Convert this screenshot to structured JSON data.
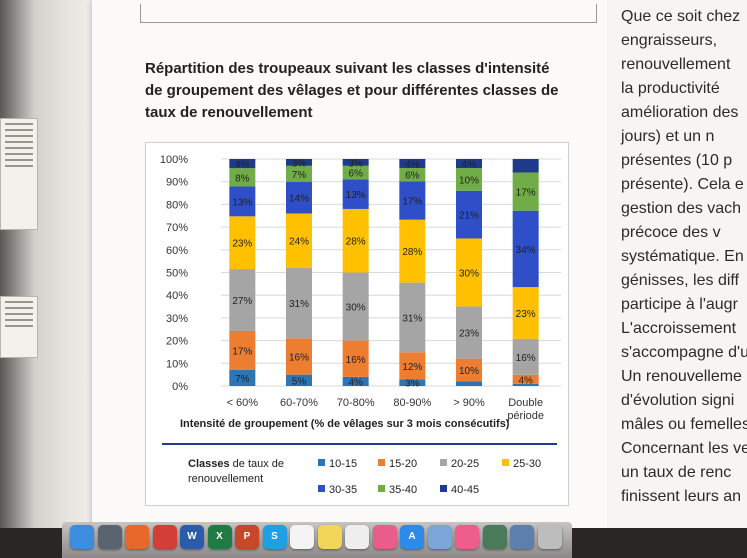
{
  "document": {
    "title_lines": [
      "Répartition des troupeaux suivant les classes d'intensité",
      "de groupement des vêlages et pour différentes classes de",
      "taux de renouvellement"
    ],
    "right_column_lines": [
      "Que ce soit chez",
      "engraisseurs,",
      "renouvellement",
      "la productivité",
      "amélioration des",
      "jours) et un n",
      "présentes (10 p",
      "présente). Cela e",
      "gestion des vach",
      "précoce des v",
      "systématique. En",
      "génisses, les diff",
      "participe à l'augr",
      "L'accroissement",
      "s'accompagne d'u",
      "Un renouvelleme",
      "d'évolution signi",
      "mâles ou femelles",
      "Concernant les ve",
      "un taux de renc",
      "finissent leurs an"
    ]
  },
  "chart_data": {
    "type": "bar",
    "stacked": true,
    "percent_scale": true,
    "categories": [
      "< 60%",
      "60-70%",
      "70-80%",
      "80-90%",
      "> 90%",
      "Double\npériode"
    ],
    "xlabel": "Intensité de groupement (% de vêlages sur 3 mois consécutifs)",
    "ylabel": "",
    "ylim": [
      0,
      100
    ],
    "yticks": [
      "0%",
      "10%",
      "20%",
      "30%",
      "40%",
      "50%",
      "60%",
      "70%",
      "80%",
      "90%",
      "100%"
    ],
    "grid": true,
    "legend_title_bold": "Classes",
    "legend_title_rest": "de taux de renouvellement",
    "legend_position": "bottom",
    "series": [
      {
        "name": "10-15",
        "color": "#2e75b6",
        "values": [
          7,
          5,
          4,
          3,
          2,
          1
        ],
        "labels": [
          "7%",
          "5%",
          "4%",
          "3%",
          "",
          ""
        ]
      },
      {
        "name": "15-20",
        "color": "#ed7d31",
        "values": [
          17,
          16,
          16,
          12,
          10,
          4
        ],
        "labels": [
          "17%",
          "16%",
          "16%",
          "12%",
          "10%",
          "4%"
        ]
      },
      {
        "name": "20-25",
        "color": "#a5a5a5",
        "values": [
          27,
          31,
          30,
          31,
          23,
          16
        ],
        "labels": [
          "27%",
          "31%",
          "30%",
          "31%",
          "23%",
          "16%"
        ]
      },
      {
        "name": "25-30",
        "color": "#ffc000",
        "values": [
          23,
          24,
          28,
          28,
          30,
          23
        ],
        "labels": [
          "23%",
          "24%",
          "28%",
          "28%",
          "30%",
          "23%"
        ]
      },
      {
        "name": "30-35",
        "color": "#2e4fc7",
        "values": [
          13,
          14,
          13,
          17,
          21,
          34
        ],
        "labels": [
          "13%",
          "14%",
          "13%",
          "17%",
          "21%",
          "34%"
        ]
      },
      {
        "name": "35-40",
        "color": "#70ad47",
        "values": [
          8,
          7,
          6,
          6,
          10,
          17
        ],
        "labels": [
          "8%",
          "7%",
          "6%",
          "6%",
          "10%",
          "17%"
        ]
      },
      {
        "name": "40-45",
        "color": "#1f3a8a",
        "values": [
          4,
          3,
          3,
          4,
          4,
          6
        ],
        "labels": [
          "4%",
          "3%",
          "3%",
          "4%",
          "4%",
          ""
        ]
      }
    ]
  },
  "dock": {
    "icons": [
      "finder-icon",
      "launchpad-icon",
      "firefox-icon",
      "chrome-icon",
      "word-icon",
      "excel-icon",
      "powerpoint-icon",
      "skype-icon",
      "calendar-icon",
      "notes-icon",
      "textedit-icon",
      "photos-icon",
      "appstore-icon",
      "preview-icon",
      "itunes-icon",
      "timemachine-icon",
      "screensharing-icon",
      "trash-icon"
    ],
    "colors": [
      "#3c8de0",
      "#5a6470",
      "#e8672a",
      "#d33f36",
      "#2b5caa",
      "#1f7a43",
      "#c7472a",
      "#1fa0e3",
      "#f4f4f4",
      "#f2d65a",
      "#eeeeee",
      "#e85d8a",
      "#2c8ae8",
      "#7aa6d9",
      "#ef5d8d",
      "#4a7a5a",
      "#5d7fae",
      "#bdbdbd"
    ],
    "glyphs": [
      "",
      "",
      "",
      "",
      "W",
      "X",
      "P",
      "S",
      "",
      "",
      "",
      "",
      "A",
      "",
      "",
      "",
      "",
      ""
    ]
  }
}
